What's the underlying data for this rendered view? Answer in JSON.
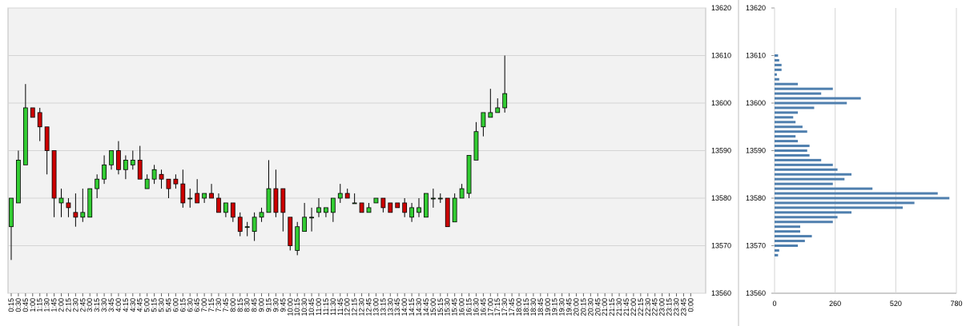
{
  "chart_data": [
    {
      "type": "candlestick",
      "y_ticks": [
        "13620",
        "13610",
        "13600",
        "13590",
        "13580",
        "13570",
        "13560"
      ],
      "ylim": [
        13560,
        13620
      ],
      "x_ticks": [
        "0:15",
        "0:30",
        "0:45",
        "1:00",
        "1:15",
        "1:30",
        "1:45",
        "2:00",
        "2:15",
        "2:30",
        "2:45",
        "3:00",
        "3:15",
        "3:30",
        "3:45",
        "4:00",
        "4:15",
        "4:30",
        "4:45",
        "5:00",
        "5:15",
        "5:30",
        "5:45",
        "6:00",
        "6:15",
        "6:30",
        "6:45",
        "7:00",
        "7:15",
        "7:30",
        "7:45",
        "8:00",
        "8:15",
        "8:30",
        "8:45",
        "9:00",
        "9:15",
        "9:30",
        "9:45",
        "10:00",
        "10:15",
        "10:30",
        "10:45",
        "11:00",
        "11:15",
        "11:30",
        "11:45",
        "12:00",
        "12:15",
        "12:30",
        "12:45",
        "13:00",
        "13:15",
        "13:30",
        "13:45",
        "14:00",
        "14:15",
        "14:30",
        "14:45",
        "15:00",
        "15:15",
        "15:30",
        "15:45",
        "16:00",
        "16:15",
        "16:30",
        "16:45",
        "17:00",
        "17:15",
        "17:30",
        "17:45",
        "18:00",
        "18:15",
        "18:30",
        "18:45",
        "19:00",
        "19:15",
        "19:30",
        "19:45",
        "20:00",
        "20:15",
        "20:30",
        "20:45",
        "21:00",
        "21:15",
        "21:30",
        "21:45",
        "22:00",
        "22:15",
        "22:30",
        "22:45",
        "23:00",
        "23:15",
        "23:30",
        "23:45",
        "0:00"
      ],
      "candles": [
        {
          "o": 13574,
          "h": 13580,
          "l": 13567,
          "c": 13580
        },
        {
          "o": 13579,
          "h": 13590,
          "l": 13579,
          "c": 13588
        },
        {
          "o": 13587,
          "h": 13604,
          "l": 13587,
          "c": 13599
        },
        {
          "o": 13599,
          "h": 13599,
          "l": 13597,
          "c": 13597
        },
        {
          "o": 13598,
          "h": 13599,
          "l": 13592,
          "c": 13595
        },
        {
          "o": 13595,
          "h": 13595,
          "l": 13585,
          "c": 13590
        },
        {
          "o": 13590,
          "h": 13590,
          "l": 13576,
          "c": 13580
        },
        {
          "o": 13579,
          "h": 13582,
          "l": 13576,
          "c": 13580
        },
        {
          "o": 13579,
          "h": 13580,
          "l": 13576,
          "c": 13578
        },
        {
          "o": 13577,
          "h": 13581,
          "l": 13574,
          "c": 13576
        },
        {
          "o": 13576,
          "h": 13582,
          "l": 13575,
          "c": 13577
        },
        {
          "o": 13576,
          "h": 13582,
          "l": 13576,
          "c": 13582
        },
        {
          "o": 13582,
          "h": 13585,
          "l": 13580,
          "c": 13584
        },
        {
          "o": 13584,
          "h": 13589,
          "l": 13583,
          "c": 13587
        },
        {
          "o": 13587,
          "h": 13590,
          "l": 13586,
          "c": 13590
        },
        {
          "o": 13590,
          "h": 13592,
          "l": 13585,
          "c": 13586
        },
        {
          "o": 13586,
          "h": 13589,
          "l": 13584,
          "c": 13588
        },
        {
          "o": 13587,
          "h": 13590,
          "l": 13586,
          "c": 13588
        },
        {
          "o": 13588,
          "h": 13591,
          "l": 13584,
          "c": 13584
        },
        {
          "o": 13582,
          "h": 13585,
          "l": 13582,
          "c": 13584
        },
        {
          "o": 13584,
          "h": 13587,
          "l": 13583,
          "c": 13586
        },
        {
          "o": 13585,
          "h": 13586,
          "l": 13582,
          "c": 13584
        },
        {
          "o": 13584,
          "h": 13584,
          "l": 13580,
          "c": 13582
        },
        {
          "o": 13584,
          "h": 13585,
          "l": 13582,
          "c": 13583
        },
        {
          "o": 13583,
          "h": 13586,
          "l": 13578,
          "c": 13579
        },
        {
          "o": 13580,
          "h": 13582,
          "l": 13578,
          "c": 13580
        },
        {
          "o": 13581,
          "h": 13584,
          "l": 13579,
          "c": 13579
        },
        {
          "o": 13580,
          "h": 13581,
          "l": 13579,
          "c": 13581
        },
        {
          "o": 13581,
          "h": 13583,
          "l": 13580,
          "c": 13580
        },
        {
          "o": 13580,
          "h": 13581,
          "l": 13577,
          "c": 13577
        },
        {
          "o": 13577,
          "h": 13579,
          "l": 13576,
          "c": 13579
        },
        {
          "o": 13579,
          "h": 13579,
          "l": 13575,
          "c": 13576
        },
        {
          "o": 13576,
          "h": 13577,
          "l": 13572,
          "c": 13573
        },
        {
          "o": 13574,
          "h": 13575,
          "l": 13572,
          "c": 13574
        },
        {
          "o": 13573,
          "h": 13577,
          "l": 13571,
          "c": 13576
        },
        {
          "o": 13576,
          "h": 13578,
          "l": 13575,
          "c": 13577
        },
        {
          "o": 13577,
          "h": 13588,
          "l": 13577,
          "c": 13582
        },
        {
          "o": 13582,
          "h": 13586,
          "l": 13576,
          "c": 13577
        },
        {
          "o": 13582,
          "h": 13582,
          "l": 13573,
          "c": 13577
        },
        {
          "o": 13576,
          "h": 13576,
          "l": 13569,
          "c": 13570
        },
        {
          "o": 13569,
          "h": 13575,
          "l": 13568,
          "c": 13574
        },
        {
          "o": 13573,
          "h": 13579,
          "l": 13573,
          "c": 13576
        },
        {
          "o": 13576,
          "h": 13578,
          "l": 13573,
          "c": 13576
        },
        {
          "o": 13577,
          "h": 13580,
          "l": 13576,
          "c": 13578
        },
        {
          "o": 13577,
          "h": 13578,
          "l": 13576,
          "c": 13578
        },
        {
          "o": 13577,
          "h": 13580,
          "l": 13575,
          "c": 13580
        },
        {
          "o": 13580,
          "h": 13583,
          "l": 13579,
          "c": 13581
        },
        {
          "o": 13581,
          "h": 13582,
          "l": 13580,
          "c": 13580
        },
        {
          "o": 13579,
          "h": 13581,
          "l": 13579,
          "c": 13579
        },
        {
          "o": 13579,
          "h": 13579,
          "l": 13577,
          "c": 13577
        },
        {
          "o": 13577,
          "h": 13579,
          "l": 13577,
          "c": 13578
        },
        {
          "o": 13579,
          "h": 13580,
          "l": 13579,
          "c": 13580
        },
        {
          "o": 13580,
          "h": 13580,
          "l": 13577,
          "c": 13578
        },
        {
          "o": 13579,
          "h": 13579,
          "l": 13577,
          "c": 13577
        },
        {
          "o": 13579,
          "h": 13579,
          "l": 13578,
          "c": 13578
        },
        {
          "o": 13579,
          "h": 13580,
          "l": 13576,
          "c": 13577
        },
        {
          "o": 13576,
          "h": 13579,
          "l": 13575,
          "c": 13578
        },
        {
          "o": 13577,
          "h": 13580,
          "l": 13576,
          "c": 13578
        },
        {
          "o": 13576,
          "h": 13581,
          "l": 13576,
          "c": 13581
        },
        {
          "o": 13580,
          "h": 13582,
          "l": 13578,
          "c": 13580
        },
        {
          "o": 13580,
          "h": 13581,
          "l": 13579,
          "c": 13580
        },
        {
          "o": 13580,
          "h": 13580,
          "l": 13574,
          "c": 13574
        },
        {
          "o": 13575,
          "h": 13581,
          "l": 13575,
          "c": 13580
        },
        {
          "o": 13580,
          "h": 13583,
          "l": 13580,
          "c": 13582
        },
        {
          "o": 13581,
          "h": 13589,
          "l": 13580,
          "c": 13589
        },
        {
          "o": 13588,
          "h": 13596,
          "l": 13588,
          "c": 13594
        },
        {
          "o": 13595,
          "h": 13598,
          "l": 13593,
          "c": 13598
        },
        {
          "o": 13597,
          "h": 13603,
          "l": 13597,
          "c": 13598
        },
        {
          "o": 13598,
          "h": 13601,
          "l": 13598,
          "c": 13599
        },
        {
          "o": 13599,
          "h": 13610,
          "l": 13598,
          "c": 13602
        }
      ]
    },
    {
      "type": "bar",
      "orientation": "horizontal",
      "y_ticks": [
        "13620",
        "13610",
        "13600",
        "13590",
        "13580",
        "13570",
        "13560"
      ],
      "x_ticks": [
        "0",
        "260",
        "520",
        "780"
      ],
      "xlim": [
        0,
        780
      ],
      "ylim": [
        13560,
        13620
      ],
      "price": [
        13568,
        13569,
        13570,
        13571,
        13572,
        13573,
        13574,
        13575,
        13576,
        13577,
        13578,
        13579,
        13580,
        13581,
        13582,
        13583,
        13584,
        13585,
        13586,
        13587,
        13588,
        13589,
        13590,
        13591,
        13592,
        13593,
        13594,
        13595,
        13596,
        13597,
        13598,
        13599,
        13600,
        13601,
        13602,
        13603,
        13604,
        13605,
        13606,
        13607,
        13608,
        13609,
        13610
      ],
      "values": [
        15,
        20,
        100,
        130,
        160,
        110,
        110,
        250,
        270,
        330,
        550,
        600,
        750,
        700,
        420,
        250,
        300,
        330,
        270,
        250,
        200,
        150,
        140,
        150,
        100,
        90,
        140,
        120,
        90,
        80,
        100,
        170,
        310,
        370,
        200,
        250,
        100,
        20,
        10,
        30,
        30,
        20,
        15
      ]
    }
  ],
  "colors": {
    "up": "#33cc33",
    "down": "#cc0000",
    "bar": "#4f7fae",
    "plot_bg": "#f2f2f2",
    "grid": "#d4d4d4"
  }
}
